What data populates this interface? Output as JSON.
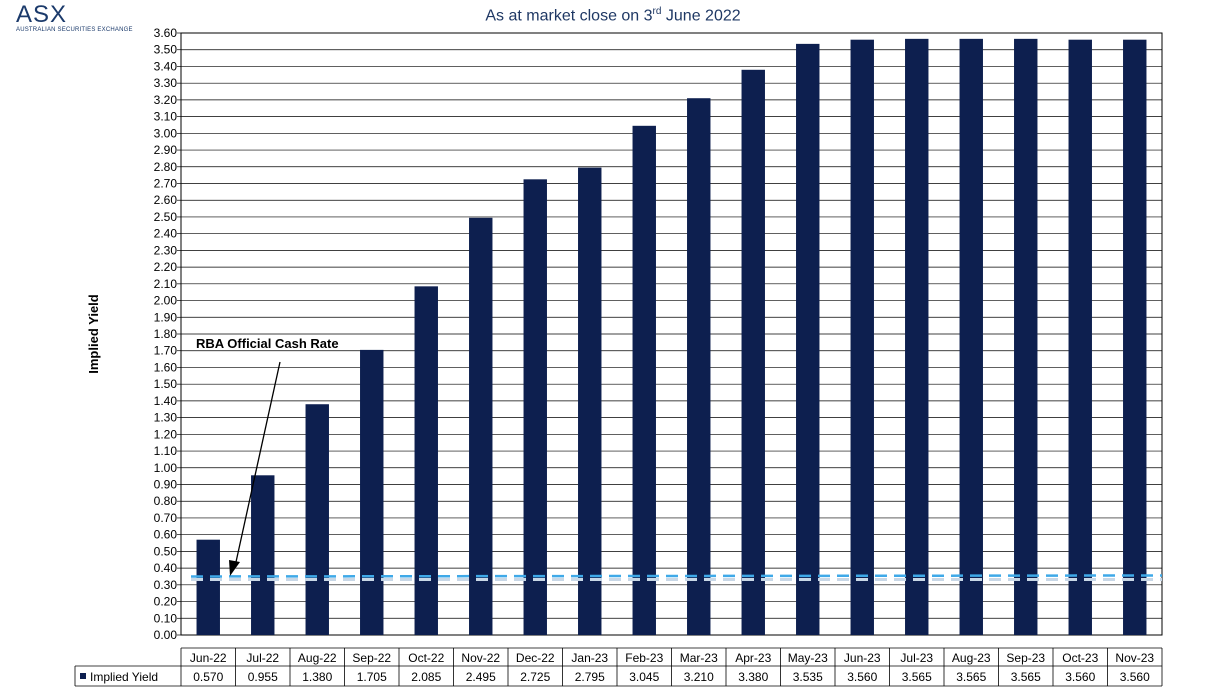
{
  "logo": {
    "name": "ASX",
    "sub": "AUSTRALIAN SECURITIES EXCHANGE"
  },
  "title": {
    "main": "As at market close on 3",
    "sup": "rd",
    "rest": " June 2022"
  },
  "colors": {
    "bar": "#0d1f4f",
    "cash_rate_line": "#3fa9e8",
    "grid": "#000000"
  },
  "chart_data": {
    "type": "bar",
    "ylabel": "Implied Yield",
    "ylim": [
      0,
      3.6
    ],
    "ytick_step": 0.1,
    "grid": true,
    "categories": [
      "Jun-22",
      "Jul-22",
      "Aug-22",
      "Sep-22",
      "Oct-22",
      "Nov-22",
      "Dec-22",
      "Jan-23",
      "Feb-23",
      "Mar-23",
      "Apr-23",
      "May-23",
      "Jun-23",
      "Jul-23",
      "Aug-23",
      "Sep-23",
      "Oct-23",
      "Nov-23"
    ],
    "series": [
      {
        "name": "Implied Yield",
        "values": [
          0.57,
          0.955,
          1.38,
          1.705,
          2.085,
          2.495,
          2.725,
          2.795,
          3.045,
          3.21,
          3.38,
          3.535,
          3.56,
          3.565,
          3.565,
          3.565,
          3.56,
          3.56
        ]
      }
    ],
    "value_labels": [
      "0.570",
      "0.955",
      "1.380",
      "1.705",
      "2.085",
      "2.495",
      "2.725",
      "2.795",
      "3.045",
      "3.210",
      "3.380",
      "3.535",
      "3.560",
      "3.565",
      "3.565",
      "3.565",
      "3.560",
      "3.560"
    ],
    "reference_line": {
      "label": "RBA Official Cash Rate",
      "value": 0.35
    },
    "annotation": "RBA Official Cash Rate",
    "data_table": true
  }
}
